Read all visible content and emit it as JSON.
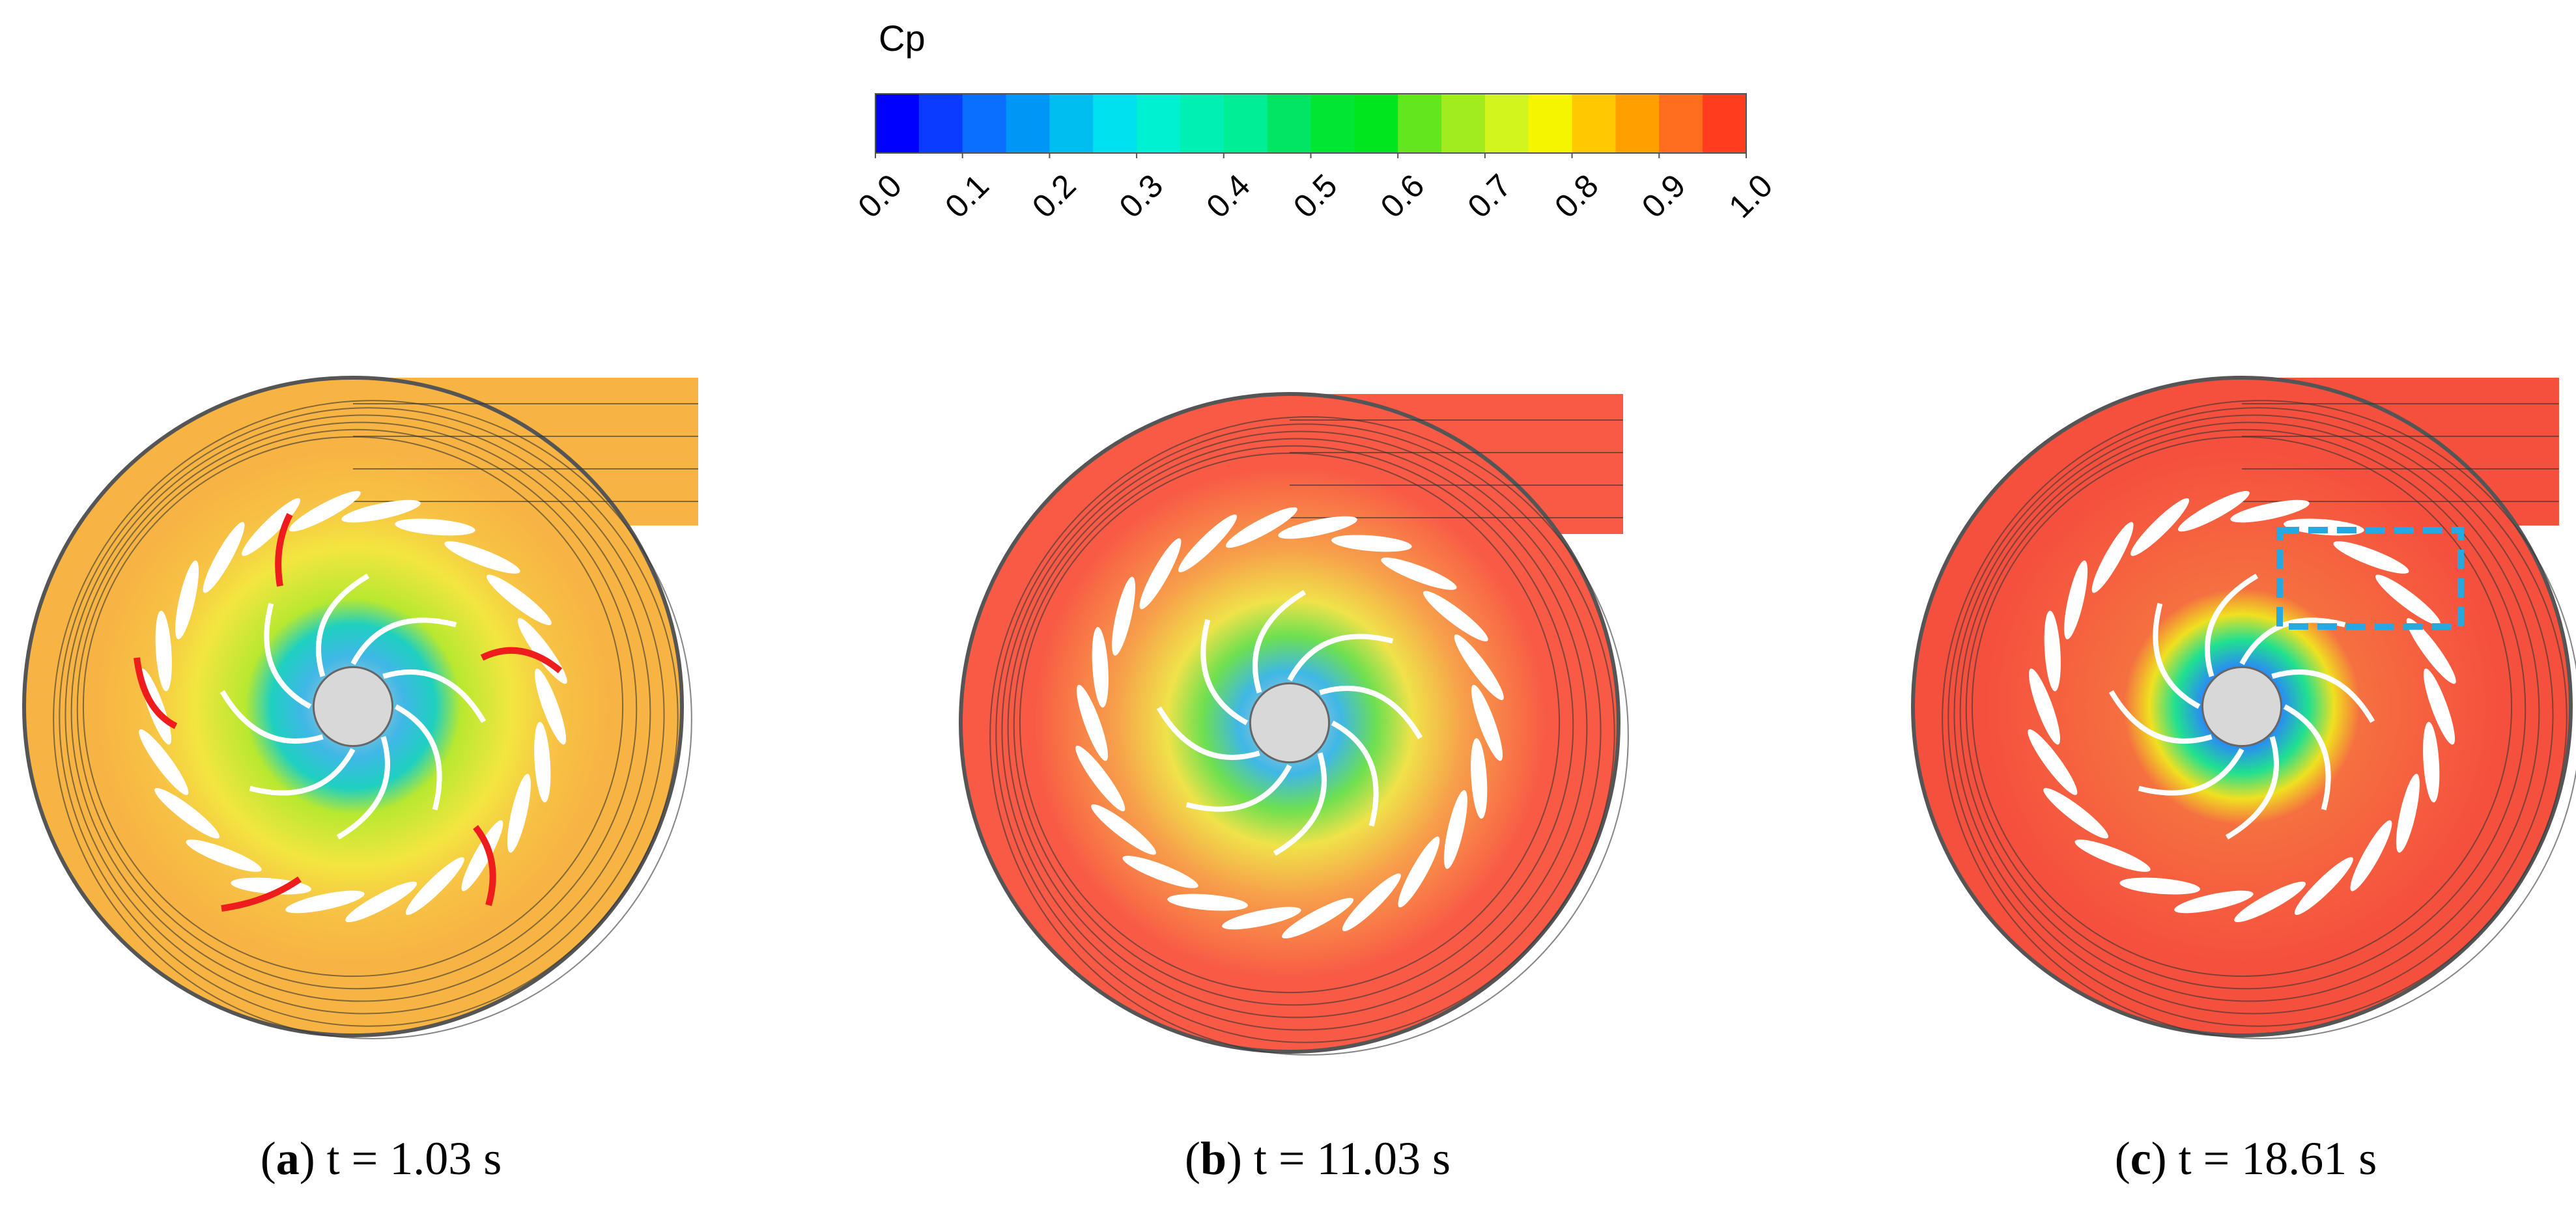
{
  "colorbar": {
    "title": "Cp",
    "colors": [
      "#0000ff",
      "#0a3cff",
      "#0a6eff",
      "#0096f5",
      "#00bef0",
      "#00e1f0",
      "#00f0d2",
      "#00f0b4",
      "#00ee96",
      "#00e664",
      "#00e632",
      "#00e61e",
      "#64e61e",
      "#a0ec1e",
      "#d2f51e",
      "#f5f500",
      "#ffc800",
      "#ffa000",
      "#ff6e1e",
      "#ff3c1e"
    ],
    "lim": [
      0,
      1
    ],
    "ticks": [
      {
        "value": 0,
        "label": "0.0"
      },
      {
        "value": 0.1,
        "label": "0.1"
      },
      {
        "value": 0.2,
        "label": "0.2"
      },
      {
        "value": 0.3,
        "label": "0.3"
      },
      {
        "value": 0.4,
        "label": "0.4"
      },
      {
        "value": 0.5,
        "label": "0.5"
      },
      {
        "value": 0.6,
        "label": "0.6"
      },
      {
        "value": 0.7,
        "label": "0.7"
      },
      {
        "value": 0.8,
        "label": "0.8"
      },
      {
        "value": 0.9,
        "label": "0.9"
      },
      {
        "value": 1,
        "label": "1.0"
      }
    ]
  },
  "panels": [
    {
      "open": "(",
      "letter": "a",
      "rest": ") t = 1.03 s"
    },
    {
      "open": "(",
      "letter": "b",
      "rest": ") t = 11.03 s"
    },
    {
      "open": "(",
      "letter": "c",
      "rest": ") t = 18.61 s"
    }
  ]
}
